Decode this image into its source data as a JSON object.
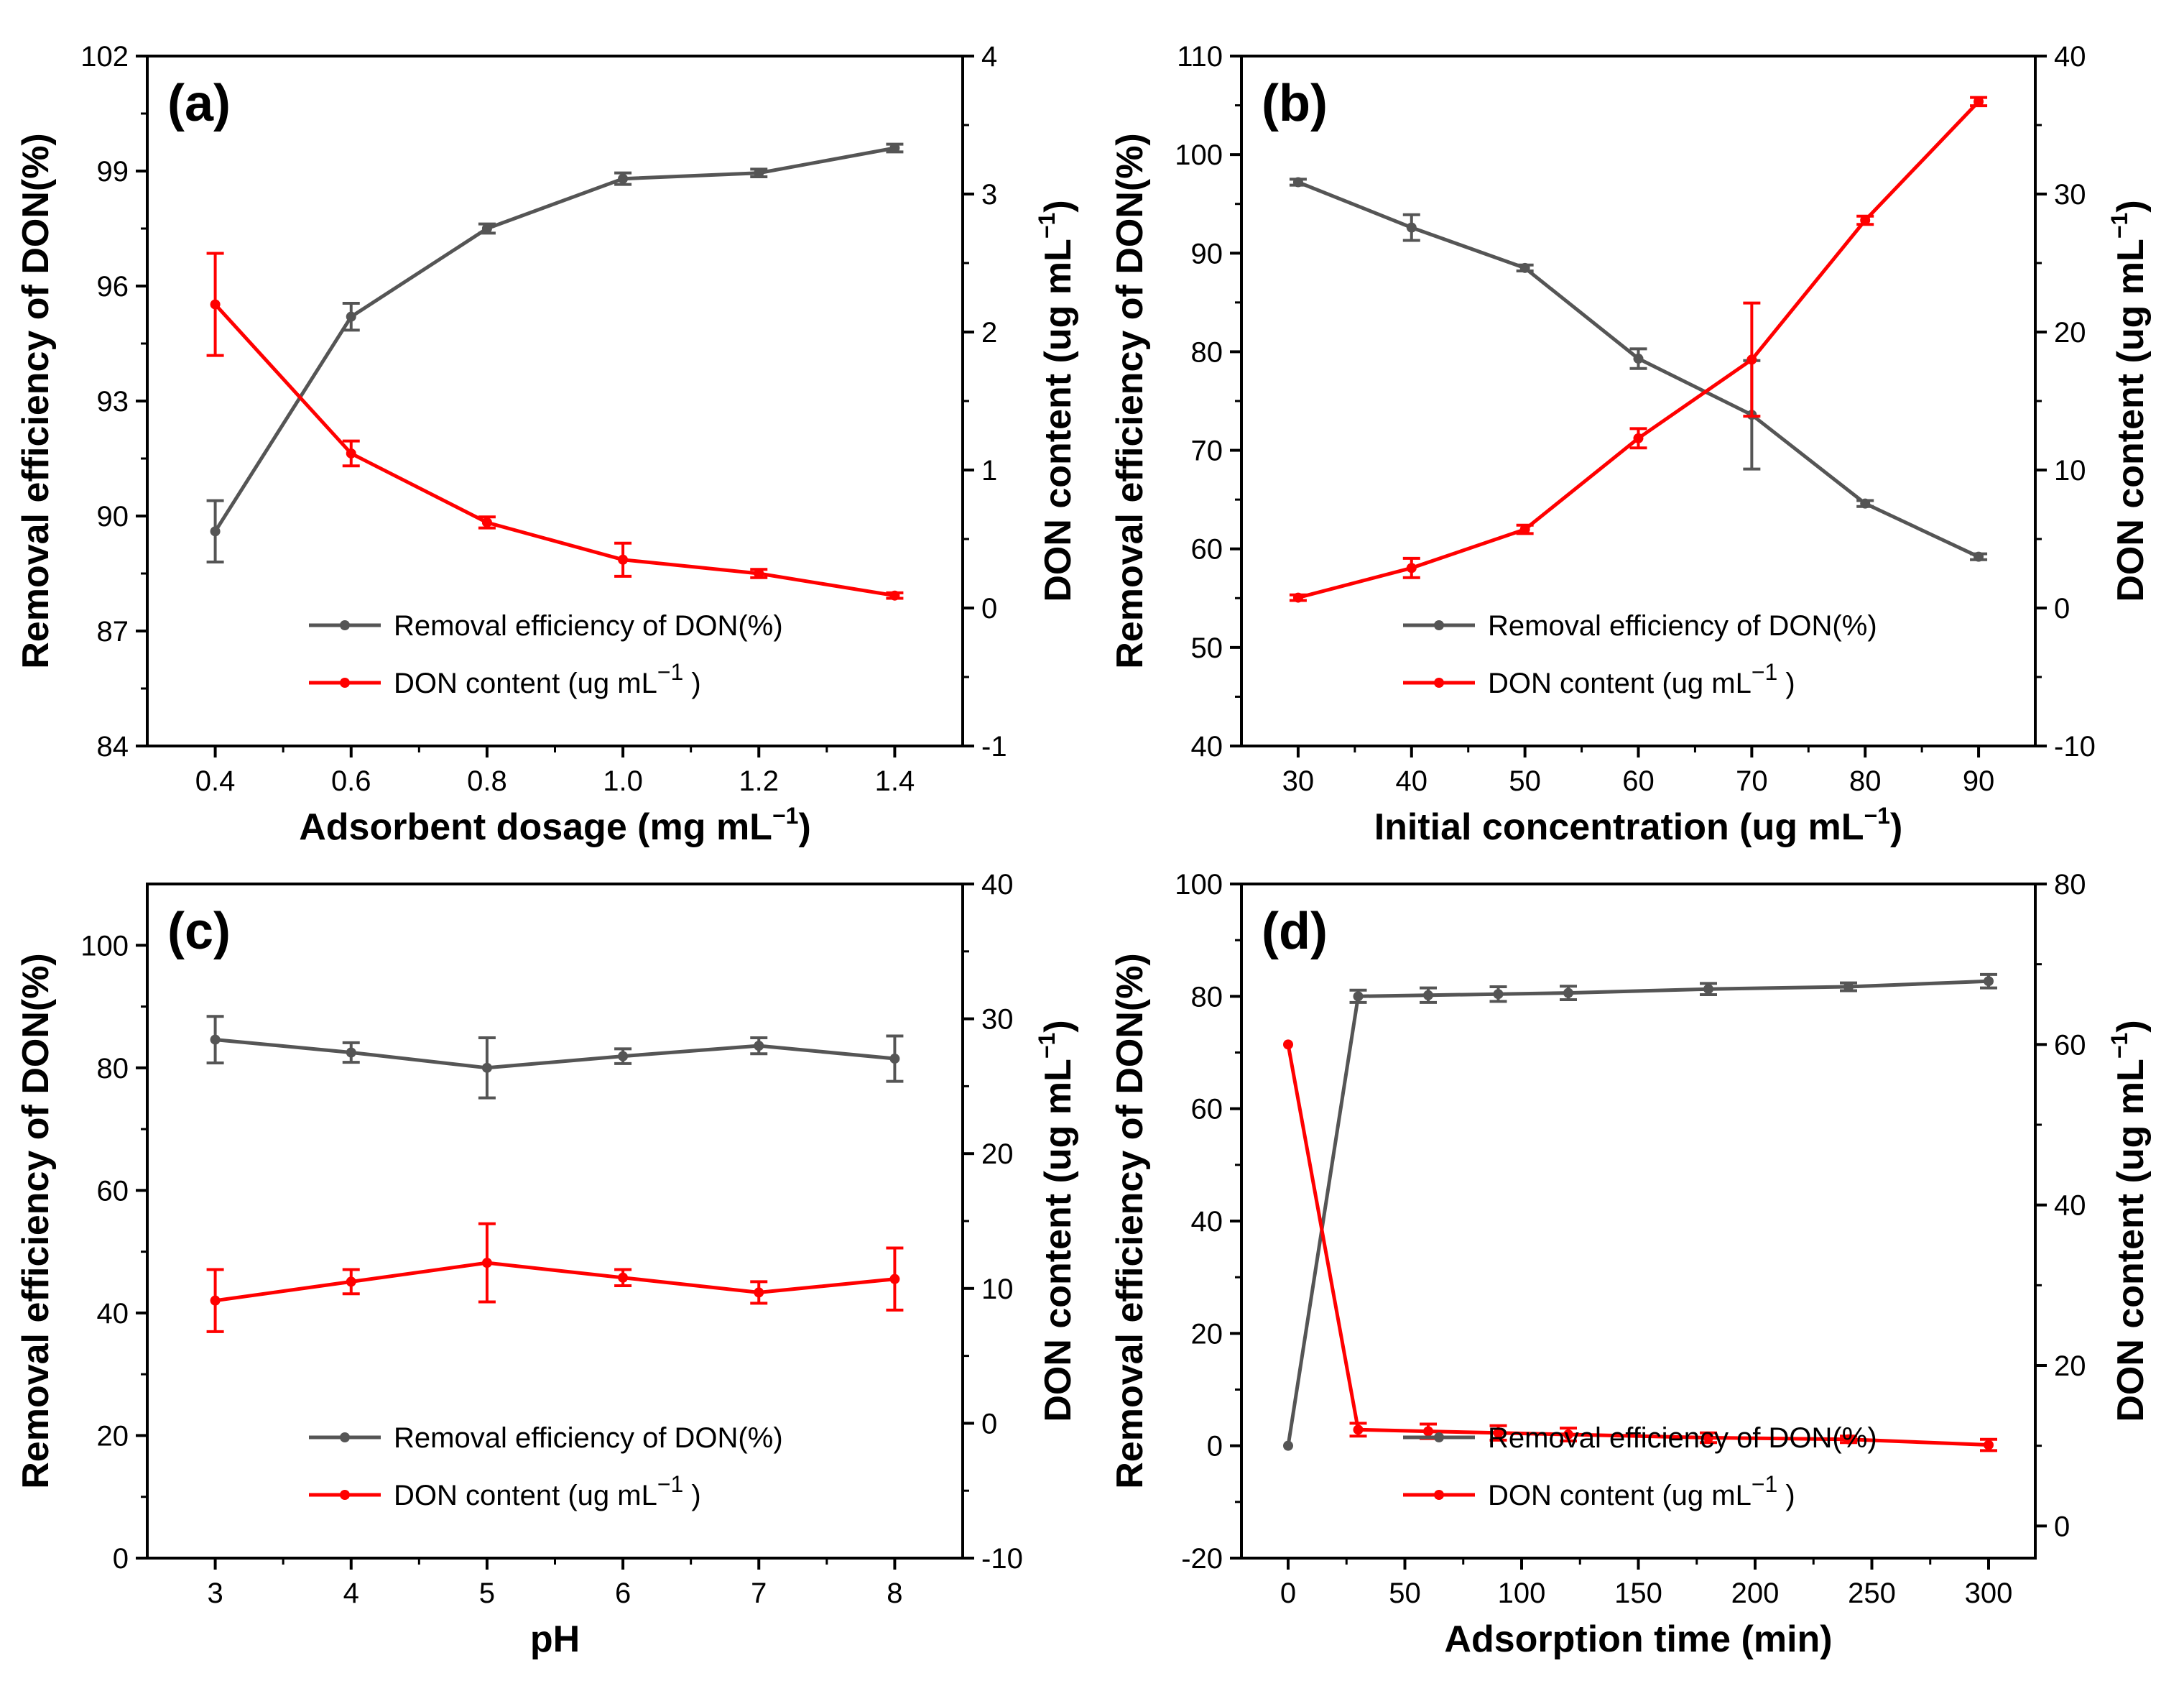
{
  "chart_data": [
    {
      "panel": "(a)",
      "type": "line",
      "xlabel": "Adsorbent dosage (mg mL",
      "xlabel_sup": "−1",
      "xlabel_suffix": ")",
      "ylabel": "Removal efficiency of DON(%)",
      "y2label": "DON content (ug mL",
      "y2label_sup": "−1",
      "y2label_suffix": ")",
      "xlim": [
        0.3,
        1.5
      ],
      "ylim": [
        84,
        102
      ],
      "y2lim": [
        -1,
        4
      ],
      "xticks": [
        "0.4",
        "0.6",
        "0.8",
        "1.0",
        "1.2",
        "1.4"
      ],
      "xtick_values": [
        0.4,
        0.6,
        0.8,
        1.0,
        1.2,
        1.4
      ],
      "yticks": [
        "84",
        "87",
        "90",
        "93",
        "96",
        "99",
        "102"
      ],
      "ytick_values": [
        84,
        87,
        90,
        93,
        96,
        99,
        102
      ],
      "y2ticks": [
        "-1",
        "0",
        "1",
        "2",
        "3",
        "4"
      ],
      "y2tick_values": [
        -1,
        0,
        1,
        2,
        3,
        4
      ],
      "legend_position": "bottom-center",
      "series": [
        {
          "name": "Removal efficiency of DON(%)",
          "axis": "left",
          "color": "#555555",
          "x": [
            0.4,
            0.6,
            0.8,
            1.0,
            1.2,
            1.4
          ],
          "y": [
            89.6,
            95.2,
            97.5,
            98.8,
            98.95,
            99.6
          ],
          "err": [
            0.8,
            0.35,
            0.12,
            0.15,
            0.1,
            0.1
          ]
        },
        {
          "name": "DON content (ug mL",
          "name_sup": "−1",
          "name_suffix": ")",
          "axis": "right",
          "color": "#ff0000",
          "x": [
            0.4,
            0.6,
            0.8,
            1.0,
            1.2,
            1.4
          ],
          "y": [
            2.2,
            1.12,
            0.62,
            0.35,
            0.25,
            0.09
          ],
          "err": [
            0.37,
            0.09,
            0.04,
            0.12,
            0.03,
            0.02
          ]
        }
      ]
    },
    {
      "panel": "(b)",
      "type": "line",
      "xlabel": "Initial concentration (ug mL",
      "xlabel_sup": "−1",
      "xlabel_suffix": ")",
      "ylabel": "Removal efficiency of DON(%)",
      "y2label": "DON content (ug mL",
      "y2label_sup": "−1",
      "y2label_suffix": ")",
      "xlim": [
        25,
        95
      ],
      "ylim": [
        40,
        110
      ],
      "y2lim": [
        -10,
        40
      ],
      "xticks": [
        "30",
        "40",
        "50",
        "60",
        "70",
        "80",
        "90"
      ],
      "xtick_values": [
        30,
        40,
        50,
        60,
        70,
        80,
        90
      ],
      "yticks": [
        "40",
        "50",
        "60",
        "70",
        "80",
        "90",
        "100",
        "110"
      ],
      "ytick_values": [
        40,
        50,
        60,
        70,
        80,
        90,
        100,
        110
      ],
      "y2ticks": [
        "-10",
        "0",
        "10",
        "20",
        "30",
        "40"
      ],
      "y2tick_values": [
        -10,
        0,
        10,
        20,
        30,
        40
      ],
      "legend_position": "bottom-center",
      "series": [
        {
          "name": "Removal efficiency of DON(%)",
          "axis": "left",
          "color": "#555555",
          "x": [
            30,
            40,
            50,
            60,
            70,
            80,
            90
          ],
          "y": [
            97.2,
            92.6,
            88.5,
            79.3,
            73.6,
            64.6,
            59.2
          ],
          "err": [
            0.3,
            1.3,
            0.3,
            1.0,
            5.5,
            0.3,
            0.3
          ]
        },
        {
          "name": "DON content (ug mL",
          "name_sup": "−1",
          "name_suffix": ")",
          "axis": "right",
          "color": "#ff0000",
          "x": [
            30,
            40,
            50,
            60,
            70,
            80,
            90
          ],
          "y": [
            0.75,
            2.9,
            5.7,
            12.3,
            18.0,
            28.1,
            36.7
          ],
          "err": [
            0.2,
            0.7,
            0.3,
            0.7,
            4.1,
            0.3,
            0.3
          ]
        }
      ]
    },
    {
      "panel": "(c)",
      "type": "line",
      "xlabel": "pH",
      "ylabel": "Removal efficiency of DON(%)",
      "y2label": "DON content (ug mL",
      "y2label_sup": "−1",
      "y2label_suffix": ")",
      "xlim": [
        2.5,
        8.5
      ],
      "ylim": [
        0,
        110
      ],
      "y2lim": [
        -10,
        40
      ],
      "xticks": [
        "3",
        "4",
        "5",
        "6",
        "7",
        "8"
      ],
      "xtick_values": [
        3,
        4,
        5,
        6,
        7,
        8
      ],
      "yticks": [
        "0",
        "20",
        "40",
        "60",
        "80",
        "100"
      ],
      "ytick_values": [
        0,
        20,
        40,
        60,
        80,
        100
      ],
      "y2ticks": [
        "-10",
        "0",
        "10",
        "20",
        "30",
        "40"
      ],
      "y2tick_values": [
        -10,
        0,
        10,
        20,
        30,
        40
      ],
      "legend_position": "bottom-center",
      "series": [
        {
          "name": "Removal efficiency of DON(%)",
          "axis": "left",
          "color": "#555555",
          "x": [
            3,
            4,
            5,
            6,
            7,
            8
          ],
          "y": [
            84.6,
            82.5,
            80.0,
            81.9,
            83.6,
            81.5
          ],
          "err": [
            3.8,
            1.6,
            4.9,
            1.2,
            1.3,
            3.7
          ]
        },
        {
          "name": "DON content (ug mL",
          "name_sup": "−1",
          "name_suffix": ")",
          "axis": "right",
          "color": "#ff0000",
          "x": [
            3,
            4,
            5,
            6,
            7,
            8
          ],
          "y": [
            9.1,
            10.5,
            11.9,
            10.8,
            9.7,
            10.7
          ],
          "err": [
            2.3,
            0.9,
            2.9,
            0.6,
            0.8,
            2.3
          ]
        }
      ]
    },
    {
      "panel": "(d)",
      "type": "line",
      "xlabel": "Adsorption time (min)",
      "ylabel": "Removal efficiency of DON(%)",
      "y2label": "DON content (ug mL",
      "y2label_sup": "−1",
      "y2label_suffix": ")",
      "xlim": [
        -20,
        320
      ],
      "ylim": [
        -20,
        100
      ],
      "y2lim": [
        -4,
        80
      ],
      "xticks": [
        "0",
        "50",
        "100",
        "150",
        "200",
        "250",
        "300"
      ],
      "xtick_values": [
        0,
        50,
        100,
        150,
        200,
        250,
        300
      ],
      "yticks": [
        "-20",
        "0",
        "20",
        "40",
        "60",
        "80",
        "100"
      ],
      "ytick_values": [
        -20,
        0,
        20,
        40,
        60,
        80,
        100
      ],
      "y2ticks": [
        "0",
        "20",
        "40",
        "60",
        "80"
      ],
      "y2tick_values": [
        0,
        20,
        40,
        60,
        80
      ],
      "legend_position": "bottom-center",
      "series": [
        {
          "name": "Removal efficiency of DON(%)",
          "axis": "left",
          "color": "#555555",
          "x": [
            0,
            30,
            60,
            90,
            120,
            180,
            240,
            300
          ],
          "y": [
            0,
            80.0,
            80.2,
            80.4,
            80.6,
            81.3,
            81.7,
            82.7
          ],
          "err": [
            0,
            1.1,
            1.3,
            1.3,
            1.2,
            1.0,
            0.7,
            1.2
          ]
        },
        {
          "name": "DON content (ug mL",
          "name_sup": "−1",
          "name_suffix": ")",
          "axis": "right",
          "color": "#ff0000",
          "x": [
            0,
            30,
            60,
            90,
            120,
            180,
            240,
            300
          ],
          "y": [
            60.0,
            12.0,
            11.8,
            11.6,
            11.4,
            11.0,
            10.8,
            10.1
          ],
          "err": [
            0,
            0.8,
            0.9,
            0.9,
            0.8,
            0.6,
            0.4,
            0.7
          ]
        }
      ]
    }
  ]
}
